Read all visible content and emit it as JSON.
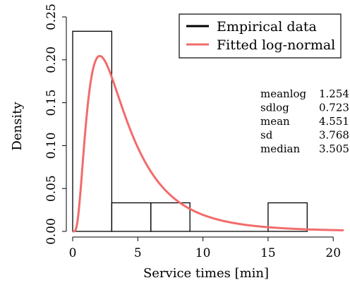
{
  "chart_data": {
    "type": "histogram",
    "xlabel": "Service times [min]",
    "ylabel": "Density",
    "xlim": [
      0,
      20.8
    ],
    "ylim": [
      0,
      0.25
    ],
    "x_ticks": [
      0,
      5,
      10,
      15,
      20
    ],
    "x_tick_labels": [
      "0",
      "5",
      "10",
      "15",
      "20"
    ],
    "y_ticks": [
      0,
      0.05,
      0.1,
      0.15,
      0.2,
      0.25
    ],
    "y_tick_labels": [
      "0.00",
      "0.05",
      "0.10",
      "0.15",
      "0.20",
      "0.25"
    ],
    "bins": [
      {
        "x0": 0,
        "x1": 3,
        "density": 0.2333
      },
      {
        "x0": 3,
        "x1": 6,
        "density": 0.0333
      },
      {
        "x0": 6,
        "x1": 9,
        "density": 0.0333
      },
      {
        "x0": 9,
        "x1": 12,
        "density": 0.0
      },
      {
        "x0": 12,
        "x1": 15,
        "density": 0.0
      },
      {
        "x0": 15,
        "x1": 18,
        "density": 0.0333
      }
    ],
    "fit": {
      "distribution": "log-normal",
      "meanlog": 1.254,
      "sdlog": 0.723
    },
    "legend": {
      "position": "top-right",
      "entries": [
        {
          "label": "Empirical data",
          "color": "#000000"
        },
        {
          "label": "Fitted log-normal",
          "color": "#F26B6B"
        }
      ]
    },
    "stats": [
      {
        "label": "meanlog",
        "value": "1.254"
      },
      {
        "label": "sdlog",
        "value": "0.723"
      },
      {
        "label": "mean",
        "value": "4.551"
      },
      {
        "label": "sd",
        "value": "3.768"
      },
      {
        "label": "median",
        "value": "3.505"
      }
    ],
    "colors": {
      "empirical": "#000000",
      "fitted": "#F26B6B"
    },
    "grid": false
  }
}
